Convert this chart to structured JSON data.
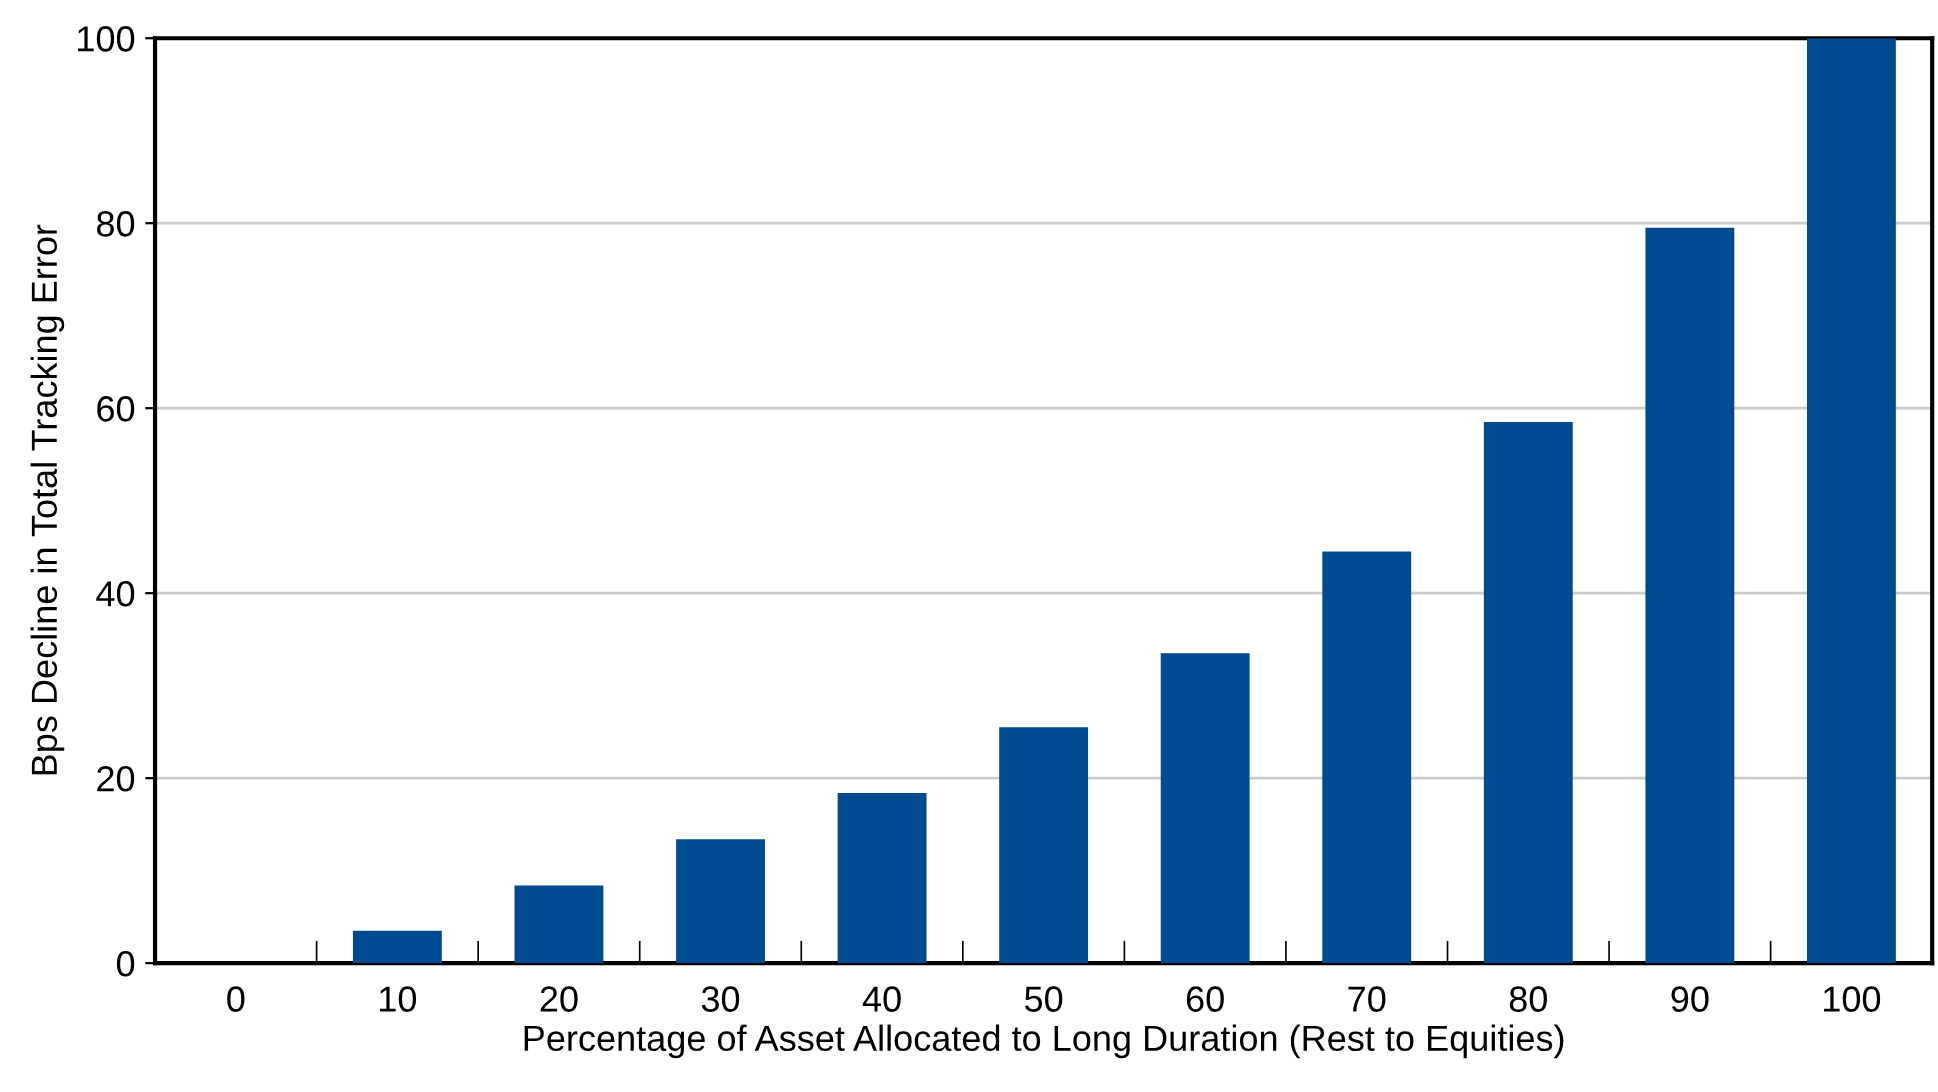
{
  "chart_data": {
    "type": "bar",
    "xlabel": "Percentage of Asset Allocated to Long Duration (Rest to Equities)",
    "ylabel": "Bps Decline in Total Tracking Error",
    "categories": [
      "0",
      "10",
      "20",
      "30",
      "40",
      "50",
      "60",
      "70",
      "80",
      "90",
      "100"
    ],
    "values": [
      0,
      3.5,
      8.4,
      13.4,
      18.4,
      25.5,
      33.5,
      44.5,
      58.5,
      79.5,
      100
    ],
    "color": "#004a8f",
    "ylim": [
      0,
      100
    ],
    "yticks": [
      0,
      20,
      40,
      60,
      80,
      100
    ],
    "grid": "y"
  }
}
